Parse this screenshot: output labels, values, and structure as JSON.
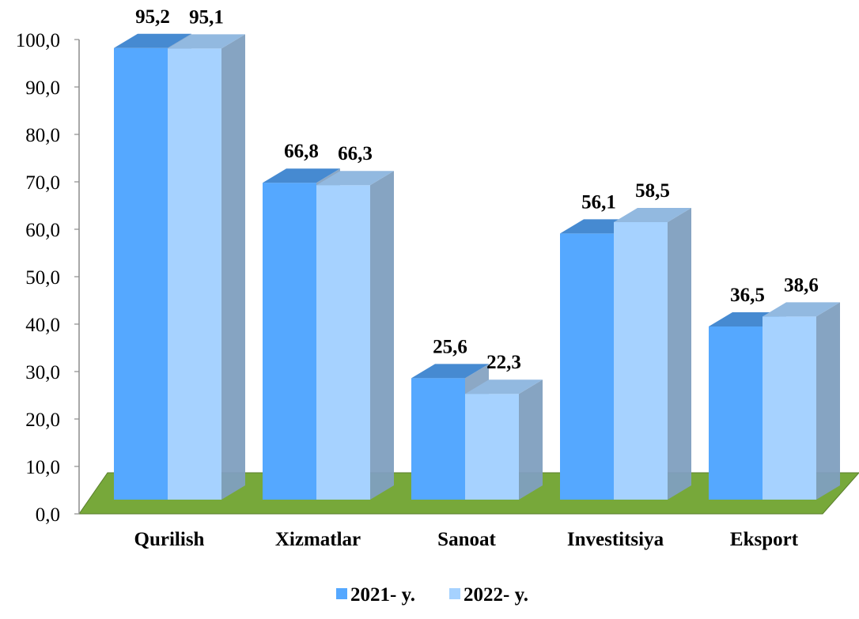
{
  "chart_data": {
    "type": "bar",
    "categories": [
      "Qurilish",
      "Xizmatlar",
      "Sanoat",
      "Investitsiya",
      "Eksport"
    ],
    "series": [
      {
        "name": "2021- y.",
        "values": [
          95.2,
          66.8,
          25.6,
          56.1,
          36.5
        ],
        "labels": [
          "95,2",
          "66,8",
          "25,6",
          "56,1",
          "36,5"
        ],
        "color": "#55a8ff"
      },
      {
        "name": "2022- y.",
        "values": [
          95.1,
          66.3,
          22.3,
          58.5,
          38.6
        ],
        "labels": [
          "95,1",
          "66,3",
          "22,3",
          "58,5",
          "38,6"
        ],
        "color": "#a6d2ff"
      }
    ],
    "ylim": [
      0,
      100
    ],
    "yticks": [
      "0,0",
      "10,0",
      "20,0",
      "30,0",
      "40,0",
      "50,0",
      "60,0",
      "70,0",
      "80,0",
      "90,0",
      "100,0"
    ],
    "floor_color": "#77a83a",
    "side_color": "#7f9fbf",
    "legend_position": "bottom",
    "grid": false,
    "style": "3d-clustered-column"
  }
}
